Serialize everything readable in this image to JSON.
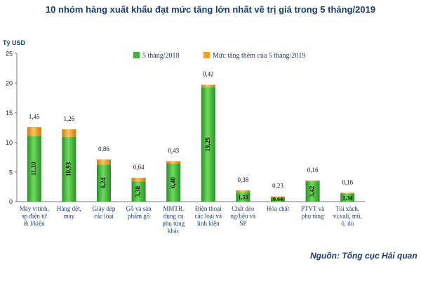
{
  "chart_data": {
    "type": "bar",
    "title": "10 nhóm hàng xuất khẩu đạt mức tăng lớn nhất về trị giá trong 5 tháng/2019",
    "ylabel": "Tỷ USD",
    "xlabel": "",
    "ylim": [
      0,
      25
    ],
    "yticks": [
      "0",
      "5",
      "10",
      "15",
      "20",
      "25"
    ],
    "grid": false,
    "legend_position": "top",
    "stacked": true,
    "categories": [
      [
        "Máy v/tính,",
        "sp điện tử",
        "& l/kiện"
      ],
      [
        "Hàng dệt,",
        "may"
      ],
      [
        "Giày dép",
        "các loại"
      ],
      [
        "Gỗ và sản",
        "phẩm gỗ"
      ],
      [
        "MMTB,",
        "dụng cụ",
        "phụ tùng",
        "khác"
      ],
      [
        "Điện thoại",
        "các loại và",
        "linh kiện"
      ],
      [
        "Chất dẻo",
        "ng/liệu và",
        "SP"
      ],
      [
        "Hóa chất"
      ],
      [
        "PTVT và",
        "phụ tùng"
      ],
      [
        "Túi xách,",
        "ví,vali, mũ,",
        "ô, dù"
      ]
    ],
    "series": [
      {
        "name": "5 tháng/2018",
        "color": "#3cb43c",
        "values": [
          11.1,
          10.93,
          6.24,
          3.38,
          6.4,
          19.29,
          1.53,
          0.64,
          3.42,
          1.34
        ],
        "labels": [
          "11,10",
          "10,93",
          "6,24",
          "3,38",
          "6,40",
          "19,29",
          "1,53",
          "0,64",
          "3,42",
          "1,34"
        ]
      },
      {
        "name": "Mức tăng thêm của 5 tháng/2019",
        "color": "#f0a030",
        "values": [
          1.45,
          1.26,
          0.86,
          0.64,
          0.43,
          0.42,
          0.38,
          0.23,
          0.16,
          0.16
        ],
        "labels": [
          "1,45",
          "1,26",
          "0,86",
          "0,64",
          "0,43",
          "0,42",
          "0,38",
          "0,23",
          "0,16",
          "0,16"
        ]
      }
    ]
  },
  "source": "Nguồn: Tổng cục Hải quan"
}
